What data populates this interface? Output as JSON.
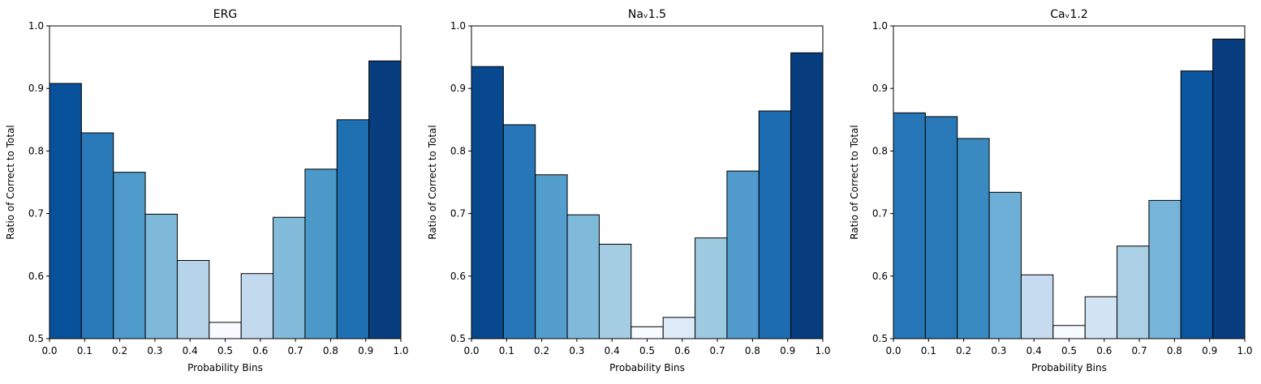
{
  "chart_data": [
    {
      "type": "bar",
      "title": "ERG",
      "xlabel": "Probability Bins",
      "ylabel": "Ratio of Correct to Total",
      "xlim": [
        0.0,
        1.0
      ],
      "ylim": [
        0.5,
        1.0
      ],
      "xticks": [
        "0.0",
        "0.1",
        "0.2",
        "0.3",
        "0.4",
        "0.5",
        "0.6",
        "0.7",
        "0.8",
        "0.9",
        "1.0"
      ],
      "yticks": [
        "0.5",
        "0.6",
        "0.7",
        "0.8",
        "0.9",
        "1.0"
      ],
      "bin_edges": [
        0.0,
        0.0909,
        0.1818,
        0.2727,
        0.3636,
        0.4545,
        0.5455,
        0.6364,
        0.7273,
        0.8182,
        0.9091,
        1.0
      ],
      "values": [
        0.908,
        0.829,
        0.766,
        0.699,
        0.625,
        0.526,
        0.604,
        0.694,
        0.771,
        0.85,
        0.944
      ],
      "grid": false,
      "colormap": "Blues"
    },
    {
      "type": "bar",
      "title": "Naᵥ1.5",
      "xlabel": "Probability Bins",
      "ylabel": "Ratio of Correct to Total",
      "xlim": [
        0.0,
        1.0
      ],
      "ylim": [
        0.5,
        1.0
      ],
      "xticks": [
        "0.0",
        "0.1",
        "0.2",
        "0.3",
        "0.4",
        "0.5",
        "0.6",
        "0.7",
        "0.8",
        "0.9",
        "1.0"
      ],
      "yticks": [
        "0.5",
        "0.6",
        "0.7",
        "0.8",
        "0.9",
        "1.0"
      ],
      "bin_edges": [
        0.0,
        0.0909,
        0.1818,
        0.2727,
        0.3636,
        0.4545,
        0.5455,
        0.6364,
        0.7273,
        0.8182,
        0.9091,
        1.0
      ],
      "values": [
        0.935,
        0.842,
        0.762,
        0.698,
        0.651,
        0.519,
        0.534,
        0.661,
        0.768,
        0.864,
        0.957
      ],
      "grid": false,
      "colormap": "Blues"
    },
    {
      "type": "bar",
      "title": "Caᵥ1.2",
      "xlabel": "Probability Bins",
      "ylabel": "Ratio of Correct to Total",
      "xlim": [
        0.0,
        1.0
      ],
      "ylim": [
        0.5,
        1.0
      ],
      "xticks": [
        "0.0",
        "0.1",
        "0.2",
        "0.3",
        "0.4",
        "0.5",
        "0.6",
        "0.7",
        "0.8",
        "0.9",
        "1.0"
      ],
      "yticks": [
        "0.5",
        "0.6",
        "0.7",
        "0.8",
        "0.9",
        "1.0"
      ],
      "bin_edges": [
        0.0,
        0.0909,
        0.1818,
        0.2727,
        0.3636,
        0.4545,
        0.5455,
        0.6364,
        0.7273,
        0.8182,
        0.9091,
        1.0
      ],
      "values": [
        0.861,
        0.855,
        0.82,
        0.734,
        0.602,
        0.521,
        0.567,
        0.648,
        0.721,
        0.928,
        0.979
      ],
      "grid": false,
      "colormap": "Blues"
    }
  ]
}
